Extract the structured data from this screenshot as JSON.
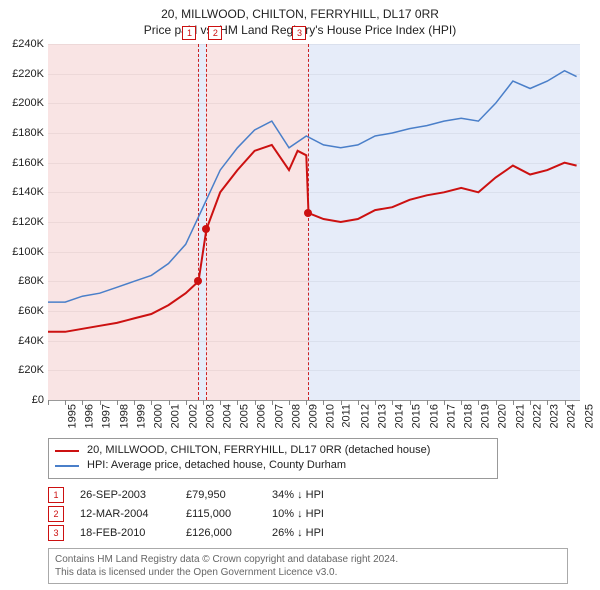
{
  "title_line1": "20, MILLWOOD, CHILTON, FERRYHILL, DL17 0RR",
  "title_line2": "Price paid vs. HM Land Registry's House Price Index (HPI)",
  "chart": {
    "type": "line",
    "background_color": "#ffffff",
    "grid_color": "#cccccc",
    "x": {
      "min": 1995,
      "max": 2025.9,
      "tick_step": 1,
      "label_fontsize": 11
    },
    "y": {
      "min": 0,
      "max": 240000,
      "tick_step": 20000,
      "prefix": "£",
      "suffix_k": "K",
      "label_fontsize": 11
    },
    "shaded_regions": [
      {
        "from": 1995,
        "to": 2003.74,
        "color": "#cc2222"
      },
      {
        "from": 2003.74,
        "to": 2004.2,
        "color": "#3366cc"
      },
      {
        "from": 2004.2,
        "to": 2010.13,
        "color": "#cc2222"
      },
      {
        "from": 2010.13,
        "to": 2025.9,
        "color": "#3366cc"
      }
    ],
    "event_lines": [
      {
        "x": 2003.74,
        "color": "#cc2222",
        "label": "1"
      },
      {
        "x": 2004.2,
        "color": "#cc2222",
        "label": "2"
      },
      {
        "x": 2010.13,
        "color": "#cc2222",
        "label": "3"
      }
    ],
    "series": [
      {
        "name": "20, MILLWOOD, CHILTON, FERRYHILL, DL17 0RR (detached house)",
        "color": "#cc1111",
        "line_width": 2,
        "points": [
          [
            1995,
            46000
          ],
          [
            1996,
            46000
          ],
          [
            1997,
            48000
          ],
          [
            1998,
            50000
          ],
          [
            1999,
            52000
          ],
          [
            2000,
            55000
          ],
          [
            2001,
            58000
          ],
          [
            2002,
            64000
          ],
          [
            2003,
            72000
          ],
          [
            2003.74,
            79950
          ],
          [
            2004,
            100000
          ],
          [
            2004.2,
            115000
          ],
          [
            2005,
            140000
          ],
          [
            2006,
            155000
          ],
          [
            2007,
            168000
          ],
          [
            2008,
            172000
          ],
          [
            2009,
            155000
          ],
          [
            2009.5,
            168000
          ],
          [
            2010,
            165000
          ],
          [
            2010.13,
            126000
          ],
          [
            2011,
            122000
          ],
          [
            2012,
            120000
          ],
          [
            2013,
            122000
          ],
          [
            2014,
            128000
          ],
          [
            2015,
            130000
          ],
          [
            2016,
            135000
          ],
          [
            2017,
            138000
          ],
          [
            2018,
            140000
          ],
          [
            2019,
            143000
          ],
          [
            2020,
            140000
          ],
          [
            2021,
            150000
          ],
          [
            2022,
            158000
          ],
          [
            2023,
            152000
          ],
          [
            2024,
            155000
          ],
          [
            2025,
            160000
          ],
          [
            2025.7,
            158000
          ]
        ],
        "marker_points": [
          {
            "x": 2003.74,
            "y": 79950
          },
          {
            "x": 2004.2,
            "y": 115000
          },
          {
            "x": 2010.13,
            "y": 126000
          }
        ]
      },
      {
        "name": "HPI: Average price, detached house, County Durham",
        "color": "#4a7fc9",
        "line_width": 1.5,
        "points": [
          [
            1995,
            66000
          ],
          [
            1996,
            66000
          ],
          [
            1997,
            70000
          ],
          [
            1998,
            72000
          ],
          [
            1999,
            76000
          ],
          [
            2000,
            80000
          ],
          [
            2001,
            84000
          ],
          [
            2002,
            92000
          ],
          [
            2003,
            105000
          ],
          [
            2004,
            130000
          ],
          [
            2005,
            155000
          ],
          [
            2006,
            170000
          ],
          [
            2007,
            182000
          ],
          [
            2008,
            188000
          ],
          [
            2009,
            170000
          ],
          [
            2010,
            178000
          ],
          [
            2011,
            172000
          ],
          [
            2012,
            170000
          ],
          [
            2013,
            172000
          ],
          [
            2014,
            178000
          ],
          [
            2015,
            180000
          ],
          [
            2016,
            183000
          ],
          [
            2017,
            185000
          ],
          [
            2018,
            188000
          ],
          [
            2019,
            190000
          ],
          [
            2020,
            188000
          ],
          [
            2021,
            200000
          ],
          [
            2022,
            215000
          ],
          [
            2023,
            210000
          ],
          [
            2024,
            215000
          ],
          [
            2025,
            222000
          ],
          [
            2025.7,
            218000
          ]
        ]
      }
    ]
  },
  "legend": {
    "items": [
      {
        "color": "#cc1111",
        "label": "20, MILLWOOD, CHILTON, FERRYHILL, DL17 0RR (detached house)"
      },
      {
        "color": "#4a7fc9",
        "label": "HPI: Average price, detached house, County Durham"
      }
    ]
  },
  "events": [
    {
      "n": "1",
      "date": "26-SEP-2003",
      "price": "£79,950",
      "delta": "34% ↓ HPI"
    },
    {
      "n": "2",
      "date": "12-MAR-2004",
      "price": "£115,000",
      "delta": "10% ↓ HPI"
    },
    {
      "n": "3",
      "date": "18-FEB-2010",
      "price": "£126,000",
      "delta": "26% ↓ HPI"
    }
  ],
  "footer_line1": "Contains HM Land Registry data © Crown copyright and database right 2024.",
  "footer_line2": "This data is licensed under the Open Government Licence v3.0."
}
